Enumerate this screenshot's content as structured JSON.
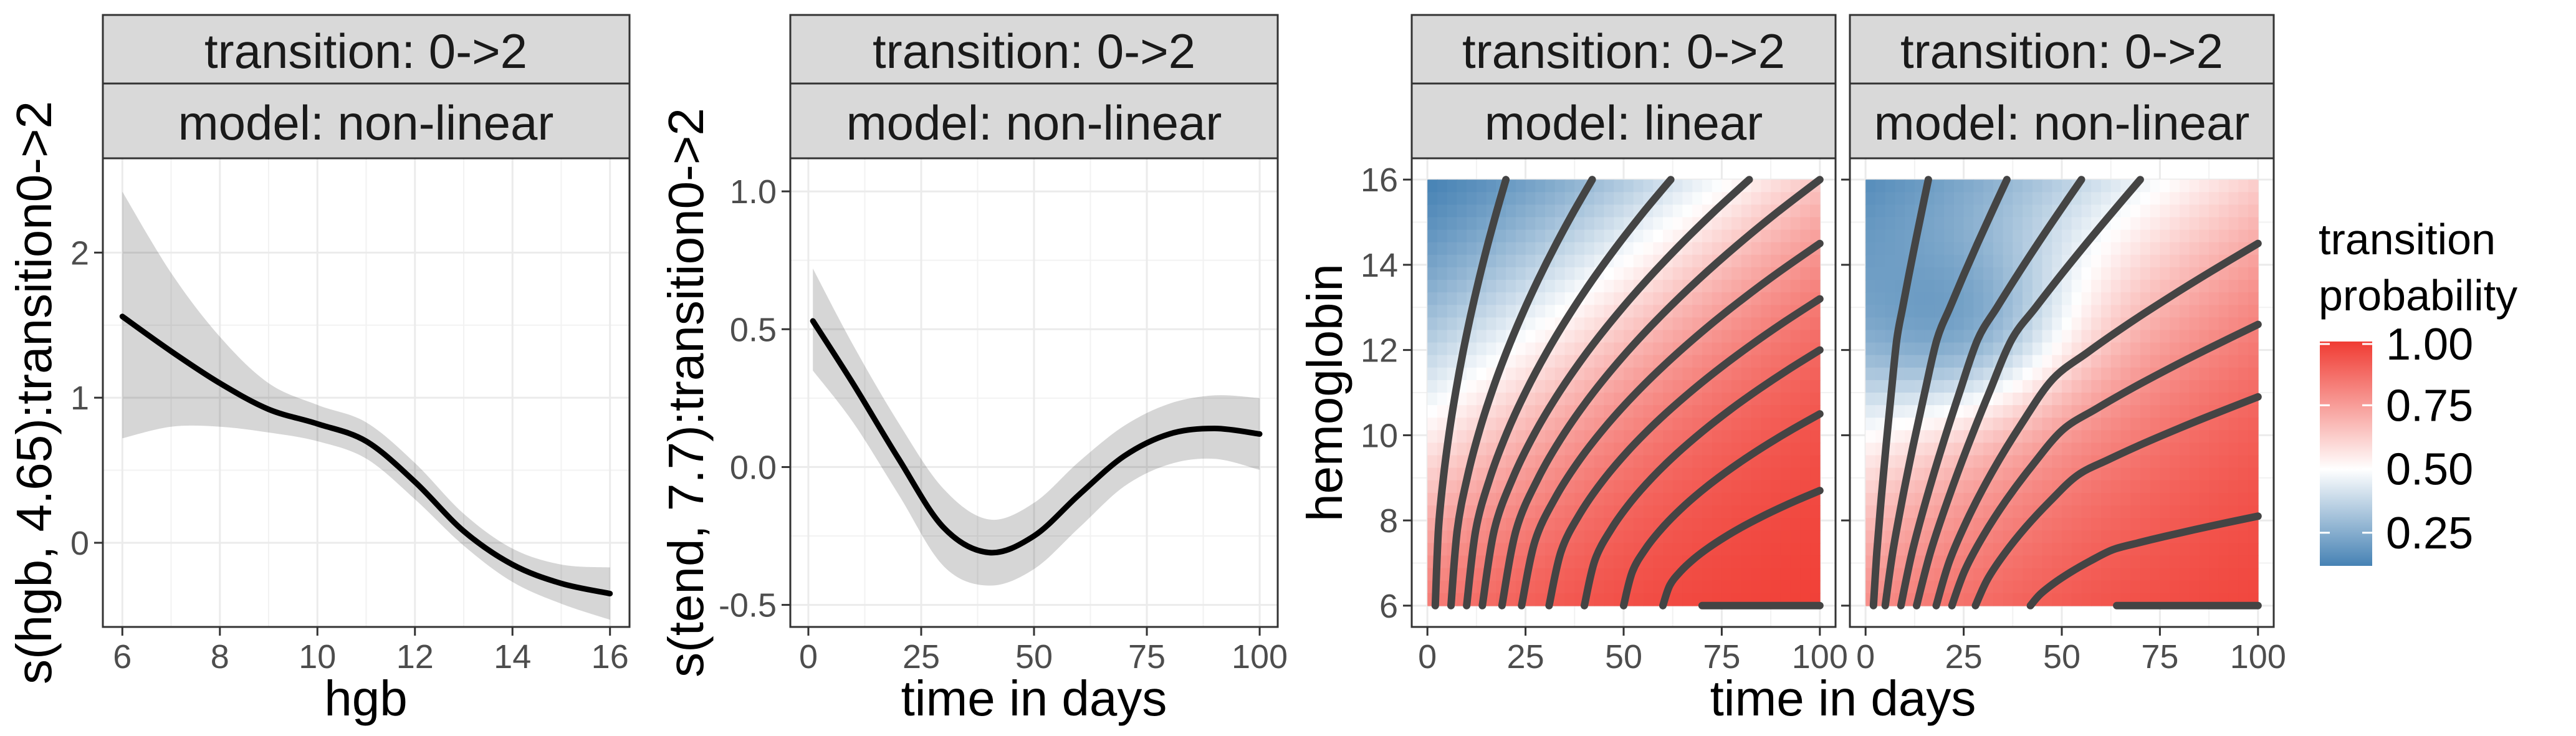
{
  "chart_data": [
    {
      "type": "line",
      "strip": [
        "transition: 0->2",
        "model: non-linear"
      ],
      "xlabel": "hgb",
      "ylabel": "s(hgb, 4.65):transition0->2",
      "xlim": [
        5.6,
        16.4
      ],
      "ylim": [
        -0.58,
        2.65
      ],
      "xticks": [
        6,
        8,
        10,
        12,
        14,
        16
      ],
      "yticks": [
        0,
        1,
        2
      ],
      "grid": true,
      "series": [
        {
          "x": [
            6,
            7,
            8,
            9,
            10,
            11,
            12,
            13,
            14,
            15,
            16
          ],
          "values": [
            1.56,
            1.32,
            1.1,
            0.92,
            0.82,
            0.7,
            0.42,
            0.08,
            -0.15,
            -0.28,
            -0.35
          ],
          "lower": [
            0.72,
            0.8,
            0.8,
            0.76,
            0.7,
            0.58,
            0.3,
            -0.02,
            -0.27,
            -0.42,
            -0.53
          ],
          "upper": [
            2.42,
            1.86,
            1.42,
            1.1,
            0.95,
            0.83,
            0.55,
            0.2,
            -0.04,
            -0.15,
            -0.17
          ]
        }
      ]
    },
    {
      "type": "line",
      "strip": [
        "transition: 0->2",
        "model: non-linear"
      ],
      "xlabel": "time in days",
      "ylabel": "s(tend, 7.7):transition0->2",
      "xlim": [
        -4,
        104
      ],
      "ylim": [
        -0.58,
        1.12
      ],
      "xticks": [
        0,
        25,
        50,
        75,
        100
      ],
      "yticks": [
        -0.5,
        0,
        0.5,
        1
      ],
      "ytick_labels": [
        "-0.5",
        "0.0",
        "0.5",
        "1.0"
      ],
      "grid": true,
      "series": [
        {
          "x": [
            1,
            10,
            20,
            30,
            40,
            50,
            60,
            70,
            80,
            90,
            100
          ],
          "values": [
            0.53,
            0.3,
            0.03,
            -0.22,
            -0.31,
            -0.25,
            -0.1,
            0.04,
            0.12,
            0.14,
            0.12
          ],
          "lower": [
            0.35,
            0.16,
            -0.1,
            -0.36,
            -0.43,
            -0.37,
            -0.22,
            -0.07,
            0.01,
            0.03,
            -0.01
          ],
          "upper": [
            0.72,
            0.44,
            0.16,
            -0.08,
            -0.19,
            -0.13,
            0.02,
            0.15,
            0.23,
            0.26,
            0.25
          ]
        }
      ]
    },
    {
      "type": "heatmap",
      "strip": [
        "transition: 0->2",
        "model: linear"
      ],
      "xlabel": "time in days",
      "ylabel": "hemoglobin",
      "xlim": [
        -4,
        104
      ],
      "ylim": [
        5.5,
        16.5
      ],
      "xticks": [
        0,
        25,
        50,
        75,
        100
      ],
      "yticks": [
        6,
        8,
        10,
        12,
        14,
        16
      ],
      "x_range": [
        0,
        100
      ],
      "y_range": [
        6,
        16
      ],
      "contour_end_x": [
        20,
        42,
        62,
        82,
        100,
        100,
        100,
        100,
        100,
        100,
        100
      ],
      "contour_end_y": [
        16,
        16,
        16,
        16,
        16,
        14.5,
        13.2,
        12,
        10.5,
        8.7,
        6
      ]
    },
    {
      "type": "heatmap",
      "strip": [
        "transition: 0->2",
        "model: non-linear"
      ],
      "xlabel": "",
      "ylabel": "",
      "xlim": [
        -4,
        104
      ],
      "ylim": [
        5.5,
        16.5
      ],
      "xticks": [
        0,
        25,
        50,
        75,
        100
      ],
      "yticks": [
        6,
        8,
        10,
        12,
        14,
        16
      ],
      "x_range": [
        0,
        100
      ],
      "y_range": [
        6,
        16
      ],
      "contour_start_x": [
        2,
        5,
        9,
        13,
        18,
        22,
        28,
        42,
        64
      ],
      "contour_end_x": [
        16,
        36,
        55,
        70,
        100,
        100,
        100,
        100,
        100
      ],
      "contour_end_y": [
        16,
        16,
        16,
        16,
        14.5,
        12.6,
        10.9,
        8.1,
        6
      ]
    }
  ],
  "shared_xlabel": "time in days",
  "legend": {
    "title_lines": [
      "transition",
      "probability"
    ],
    "labels": [
      "1.00",
      "0.75",
      "0.50",
      "0.25"
    ],
    "values": [
      1,
      0.75,
      0.5,
      0.25
    ],
    "range": [
      0.12,
      1.0
    ],
    "colors": {
      "low": "#4682b4",
      "mid": "#ffffff",
      "high": "#f03b32"
    },
    "placement": "right"
  }
}
